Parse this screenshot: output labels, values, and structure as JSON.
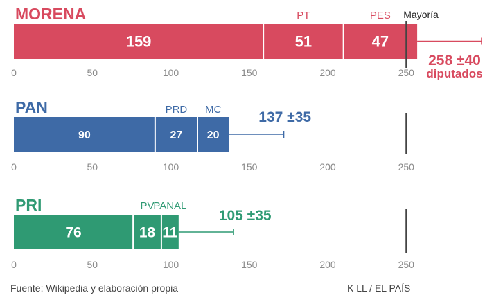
{
  "chart_data": {
    "type": "bar",
    "orientation": "horizontal-stacked",
    "xlim": [
      0,
      260
    ],
    "xticks": [
      "0",
      "50",
      "100",
      "150",
      "200",
      "250"
    ],
    "majority_label": "Mayoría",
    "majority_value": 250,
    "groups": [
      {
        "name": "MORENA",
        "color": "#d84a5f",
        "segments": [
          {
            "party": "",
            "value": 159,
            "label": "159"
          },
          {
            "party": "PT",
            "value": 51,
            "label": "51"
          },
          {
            "party": "PES",
            "value": 47,
            "label": "47"
          }
        ],
        "total": 258,
        "error": 40,
        "total_label": "258 ±40",
        "sub_label": "diputados"
      },
      {
        "name": "PAN",
        "color": "#3e6aa6",
        "segments": [
          {
            "party": "",
            "value": 90,
            "label": "90"
          },
          {
            "party": "PRD",
            "value": 27,
            "label": "27"
          },
          {
            "party": "MC",
            "value": 20,
            "label": "20"
          }
        ],
        "total": 137,
        "error": 35,
        "total_label": "137 ±35",
        "sub_label": ""
      },
      {
        "name": "PRI",
        "color": "#2f9a73",
        "segments": [
          {
            "party": "",
            "value": 76,
            "label": "76"
          },
          {
            "party": "PV",
            "value": 18,
            "label": "18"
          },
          {
            "party": "PANAL",
            "value": 11,
            "label": "11"
          }
        ],
        "total": 105,
        "error": 35,
        "total_label": "105 ±35",
        "sub_label": ""
      }
    ]
  },
  "footer": {
    "source": "Fuente: Wikipedia y elaboración propia",
    "credit": "K LL / EL PAÍS"
  }
}
